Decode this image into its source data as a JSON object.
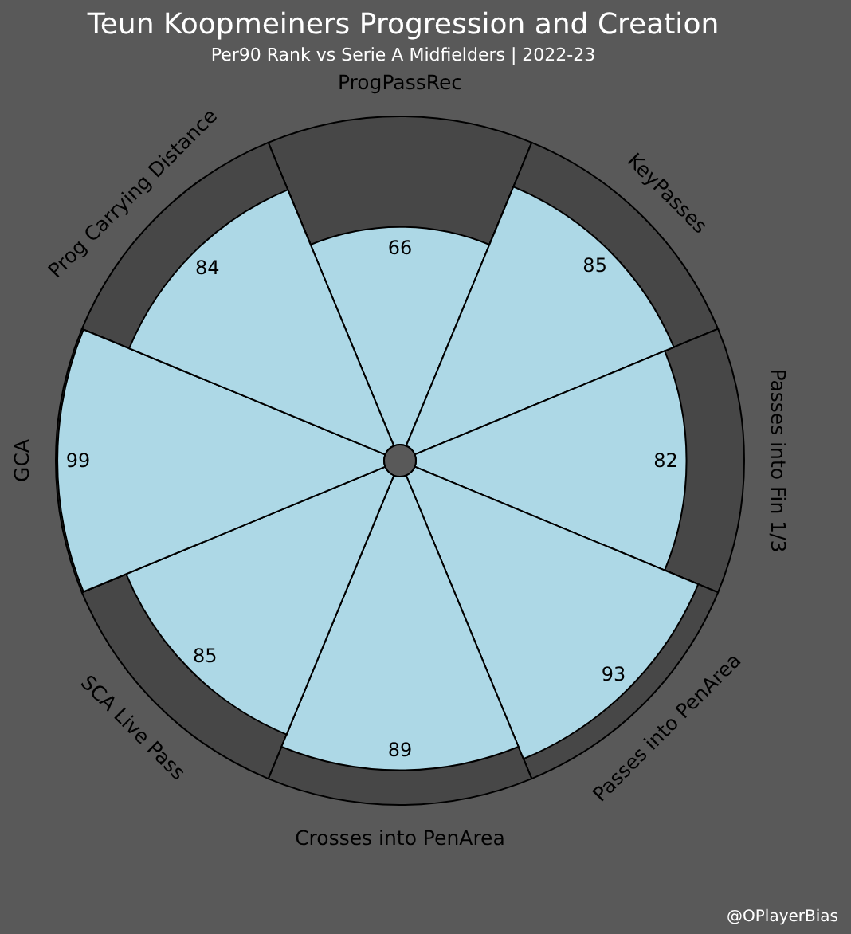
{
  "chart_data": {
    "type": "other",
    "title": "Teun Koopmeiners Progression and Creation",
    "subtitle": "Per90 Rank vs Serie A Midfielders | 2022-23",
    "categories": [
      "ProgPassRec",
      "KeyPasses",
      "Passes into Fin 1/3",
      "Passes into PenArea",
      "Crosses into PenArea",
      "SCA Live Pass",
      "GCA",
      "Prog Carrying Distance"
    ],
    "series": [
      {
        "color": "#add8e6",
        "values": [
          66,
          85,
          82,
          93,
          89,
          85,
          99,
          84
        ]
      }
    ],
    "data_labels": true,
    "annotations": [
      "@OPlayerBias"
    ]
  }
}
